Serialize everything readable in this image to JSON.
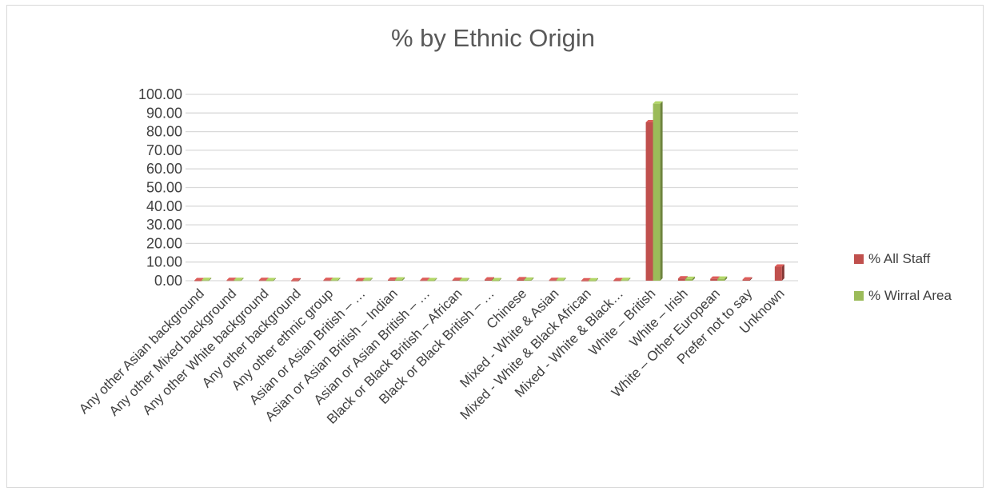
{
  "chart_data": {
    "type": "bar",
    "title": "% by Ethnic Origin",
    "xlabel": "",
    "ylabel": "",
    "ylim": [
      0,
      100
    ],
    "y_ticks": [
      "0.00",
      "10.00",
      "20.00",
      "30.00",
      "40.00",
      "50.00",
      "60.00",
      "70.00",
      "80.00",
      "90.00",
      "100.00"
    ],
    "grid": true,
    "legend_position": "right",
    "categories": [
      "Any other Asian background",
      "Any other Mixed background",
      "Any other White background",
      "Any other background",
      "Any other ethnic group",
      "Asian or Asian British – …",
      "Asian or Asian British – Indian",
      "Asian or Asian British – …",
      "Black or Black British – African",
      "Black or Black British – …",
      "Chinese",
      "Mixed - White & Asian",
      "Mixed - White & Black African",
      "Mixed - White & Black…",
      "White – British",
      "White – Irish",
      "White – Other European",
      "Prefer not to say",
      "Unknown"
    ],
    "series": [
      {
        "name": "% All Staff",
        "color": "#c0504d",
        "values": [
          0.2,
          0.3,
          0.3,
          0.1,
          0.3,
          0.2,
          0.5,
          0.3,
          0.4,
          0.6,
          0.7,
          0.3,
          0.1,
          0.2,
          85.0,
          1.2,
          1.0,
          0.6,
          7.5
        ]
      },
      {
        "name": "% Wirral Area",
        "color": "#9bbb59",
        "values": [
          0.3,
          0.3,
          0.2,
          0,
          0.3,
          0.3,
          0.6,
          0.2,
          0.2,
          0.2,
          0.5,
          0.3,
          0.1,
          0.3,
          95.0,
          0.9,
          1.0,
          0,
          0
        ]
      }
    ]
  }
}
